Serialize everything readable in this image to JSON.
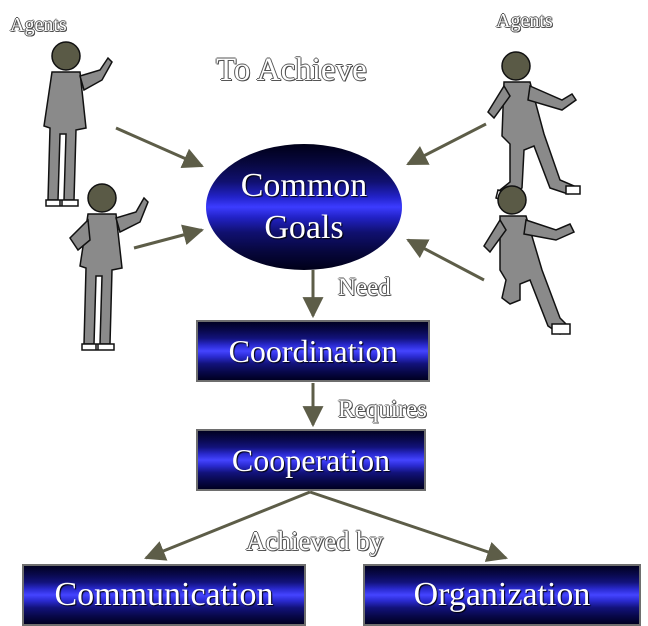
{
  "title": "To Achieve",
  "agents_left_label": "Agents",
  "agents_right_label": "Agents",
  "nodes": {
    "goals_line1": "Common",
    "goals_line2": "Goals",
    "coordination": "Coordination",
    "cooperation": "Cooperation",
    "communication": "Communication",
    "organization": "Organization"
  },
  "edges": {
    "need": "Need",
    "requires": "Requires",
    "achieved_by": "Achieved by"
  },
  "colors": {
    "arrow": "#5d5d48",
    "box_dark": "#000022",
    "box_band": "#4444ff",
    "figure_head": "#5a5a46",
    "figure_body": "#8a8a8a"
  }
}
